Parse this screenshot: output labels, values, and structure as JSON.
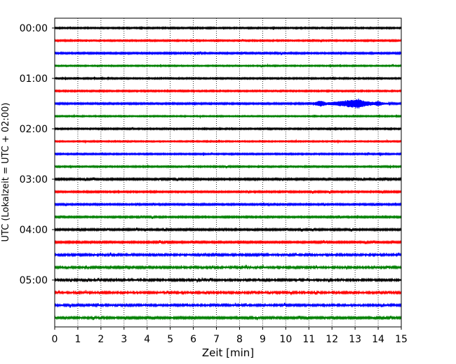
{
  "chart_data": {
    "type": "line",
    "title": "",
    "xlabel": "Zeit  [min]",
    "ylabel": "UTC (Lokalzeit = UTC + 02:00)",
    "xlim": [
      0,
      15
    ],
    "x_ticks": [
      "0",
      "1",
      "2",
      "3",
      "4",
      "5",
      "6",
      "7",
      "8",
      "9",
      "10",
      "11",
      "12",
      "13",
      "14",
      "15"
    ],
    "y_tick_labels": [
      "00:00",
      "01:00",
      "02:00",
      "03:00",
      "04:00",
      "05:00"
    ],
    "grid": "vertical dotted lines at each minute",
    "minutes_per_line": 15,
    "trace_count": 24,
    "trace_colors": [
      "#000000",
      "#ff0000",
      "#0000ff",
      "#008000"
    ],
    "series": [
      {
        "start": "00:00",
        "color": "#000000",
        "amplitude": 0.9
      },
      {
        "start": "00:15",
        "color": "#ff0000",
        "amplitude": 0.9
      },
      {
        "start": "00:30",
        "color": "#0000ff",
        "amplitude": 1.0
      },
      {
        "start": "00:45",
        "color": "#008000",
        "amplitude": 0.8
      },
      {
        "start": "01:00",
        "color": "#000000",
        "amplitude": 0.9
      },
      {
        "start": "01:15",
        "color": "#ff0000",
        "amplitude": 0.9
      },
      {
        "start": "01:30",
        "color": "#0000ff",
        "amplitude": 1.0,
        "event": {
          "start_min": 11.2,
          "peak_min": 13.15,
          "end_min": 14.6,
          "peak_amplitude": 6.5
        }
      },
      {
        "start": "01:45",
        "color": "#008000",
        "amplitude": 0.8
      },
      {
        "start": "02:00",
        "color": "#000000",
        "amplitude": 0.9
      },
      {
        "start": "02:15",
        "color": "#ff0000",
        "amplitude": 0.8
      },
      {
        "start": "02:30",
        "color": "#0000ff",
        "amplitude": 0.9
      },
      {
        "start": "02:45",
        "color": "#008000",
        "amplitude": 0.9
      },
      {
        "start": "03:00",
        "color": "#000000",
        "amplitude": 1.1
      },
      {
        "start": "03:15",
        "color": "#ff0000",
        "amplitude": 1.0
      },
      {
        "start": "03:30",
        "color": "#0000ff",
        "amplitude": 1.0
      },
      {
        "start": "03:45",
        "color": "#008000",
        "amplitude": 1.0
      },
      {
        "start": "04:00",
        "color": "#000000",
        "amplitude": 1.1
      },
      {
        "start": "04:15",
        "color": "#ff0000",
        "amplitude": 1.1
      },
      {
        "start": "04:30",
        "color": "#0000ff",
        "amplitude": 1.3
      },
      {
        "start": "04:45",
        "color": "#008000",
        "amplitude": 1.3
      },
      {
        "start": "05:00",
        "color": "#000000",
        "amplitude": 1.3
      },
      {
        "start": "05:15",
        "color": "#ff0000",
        "amplitude": 1.3
      },
      {
        "start": "05:30",
        "color": "#0000ff",
        "amplitude": 1.3
      },
      {
        "start": "05:45",
        "color": "#008000",
        "amplitude": 1.2
      }
    ]
  }
}
